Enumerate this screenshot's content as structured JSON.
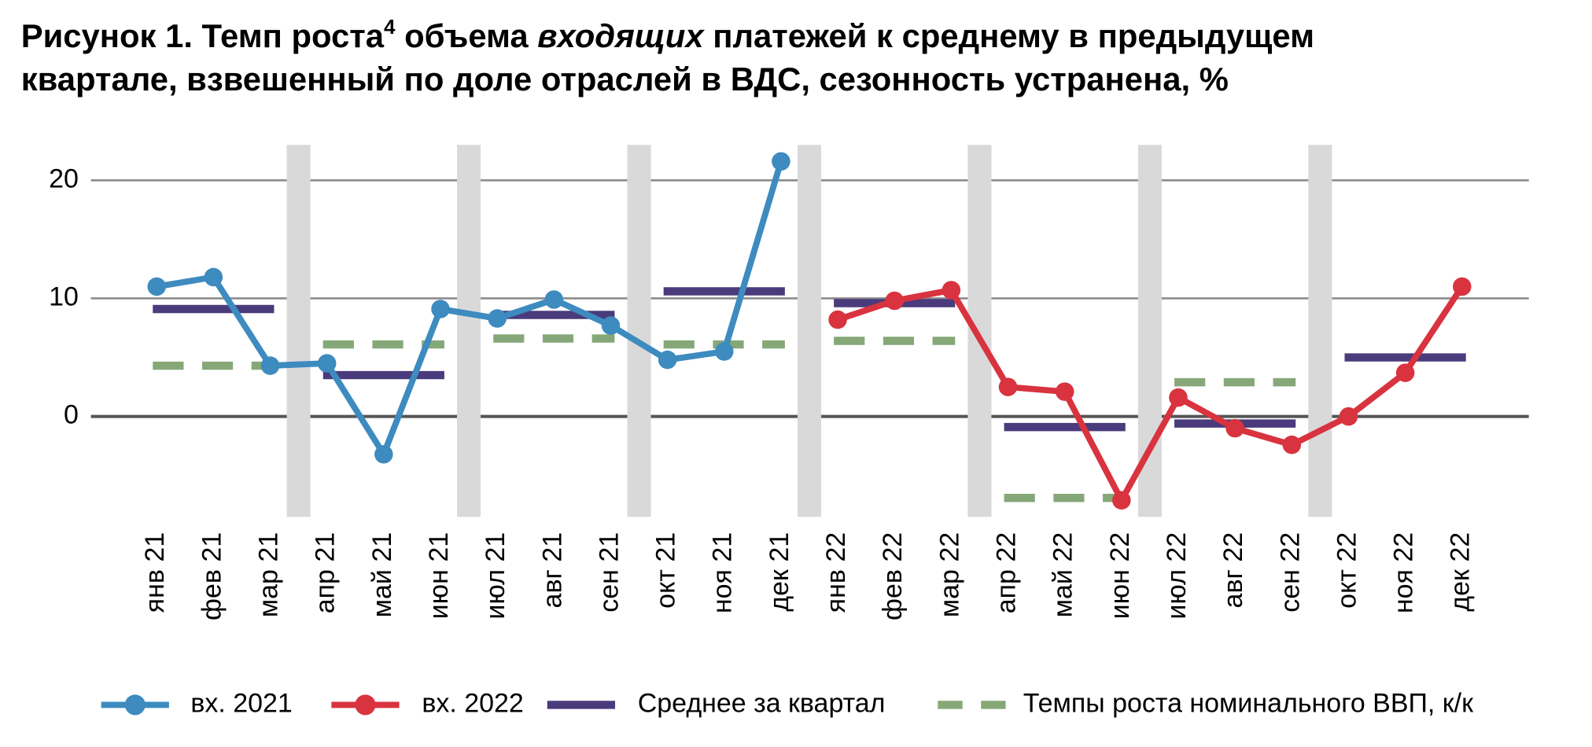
{
  "chart_data": {
    "type": "line",
    "title": [
      "Рисунок 1. Темп роста",
      "4",
      " объема ",
      "входящих",
      " платежей к среднему в предыдущем",
      "квартале, взвешенный по доле отраслей в ВДС, сезонность устранена, %"
    ],
    "categories": [
      "янв 21",
      "фев 21",
      "мар 21",
      "апр 21",
      "май 21",
      "июн 21",
      "июл 21",
      "авг 21",
      "сен 21",
      "окт 21",
      "ноя 21",
      "дек 21",
      "янв 22",
      "фев 22",
      "мар 22",
      "апр 22",
      "май 22",
      "июн 22",
      "июл 22",
      "авг 22",
      "сен 22",
      "окт 22",
      "ноя 22",
      "дек 22"
    ],
    "series": [
      {
        "name": "вх. 2021",
        "color": "#3d8bbf",
        "values": [
          11.0,
          11.8,
          4.3,
          4.5,
          -3.2,
          9.1,
          8.3,
          9.9,
          7.7,
          4.8,
          5.5,
          21.6,
          null,
          null,
          null,
          null,
          null,
          null,
          null,
          null,
          null,
          null,
          null,
          null
        ]
      },
      {
        "name": "вх. 2022",
        "color": "#d8333f",
        "values": [
          null,
          null,
          null,
          null,
          null,
          null,
          null,
          null,
          null,
          null,
          null,
          null,
          8.2,
          9.8,
          10.7,
          2.5,
          2.1,
          -7.1,
          1.6,
          -1.0,
          -2.4,
          0,
          3.7,
          11.0
        ]
      }
    ],
    "quarter_series": [
      {
        "name": "Среднее за квартал",
        "color": "#4a3b7c",
        "style": "solid",
        "values": [
          9.1,
          3.5,
          8.6,
          10.6,
          9.6,
          -0.9,
          -0.6,
          5.0
        ]
      },
      {
        "name": "Темпы роста номинального ВВП, к/к",
        "color": "#86a878",
        "style": "dashed",
        "values": [
          4.3,
          6.1,
          6.6,
          6.1,
          6.4,
          -6.9,
          2.9,
          null
        ]
      }
    ],
    "ylim": [
      -8.5,
      23
    ],
    "yticks": [
      0,
      10,
      20
    ],
    "grid": true
  }
}
